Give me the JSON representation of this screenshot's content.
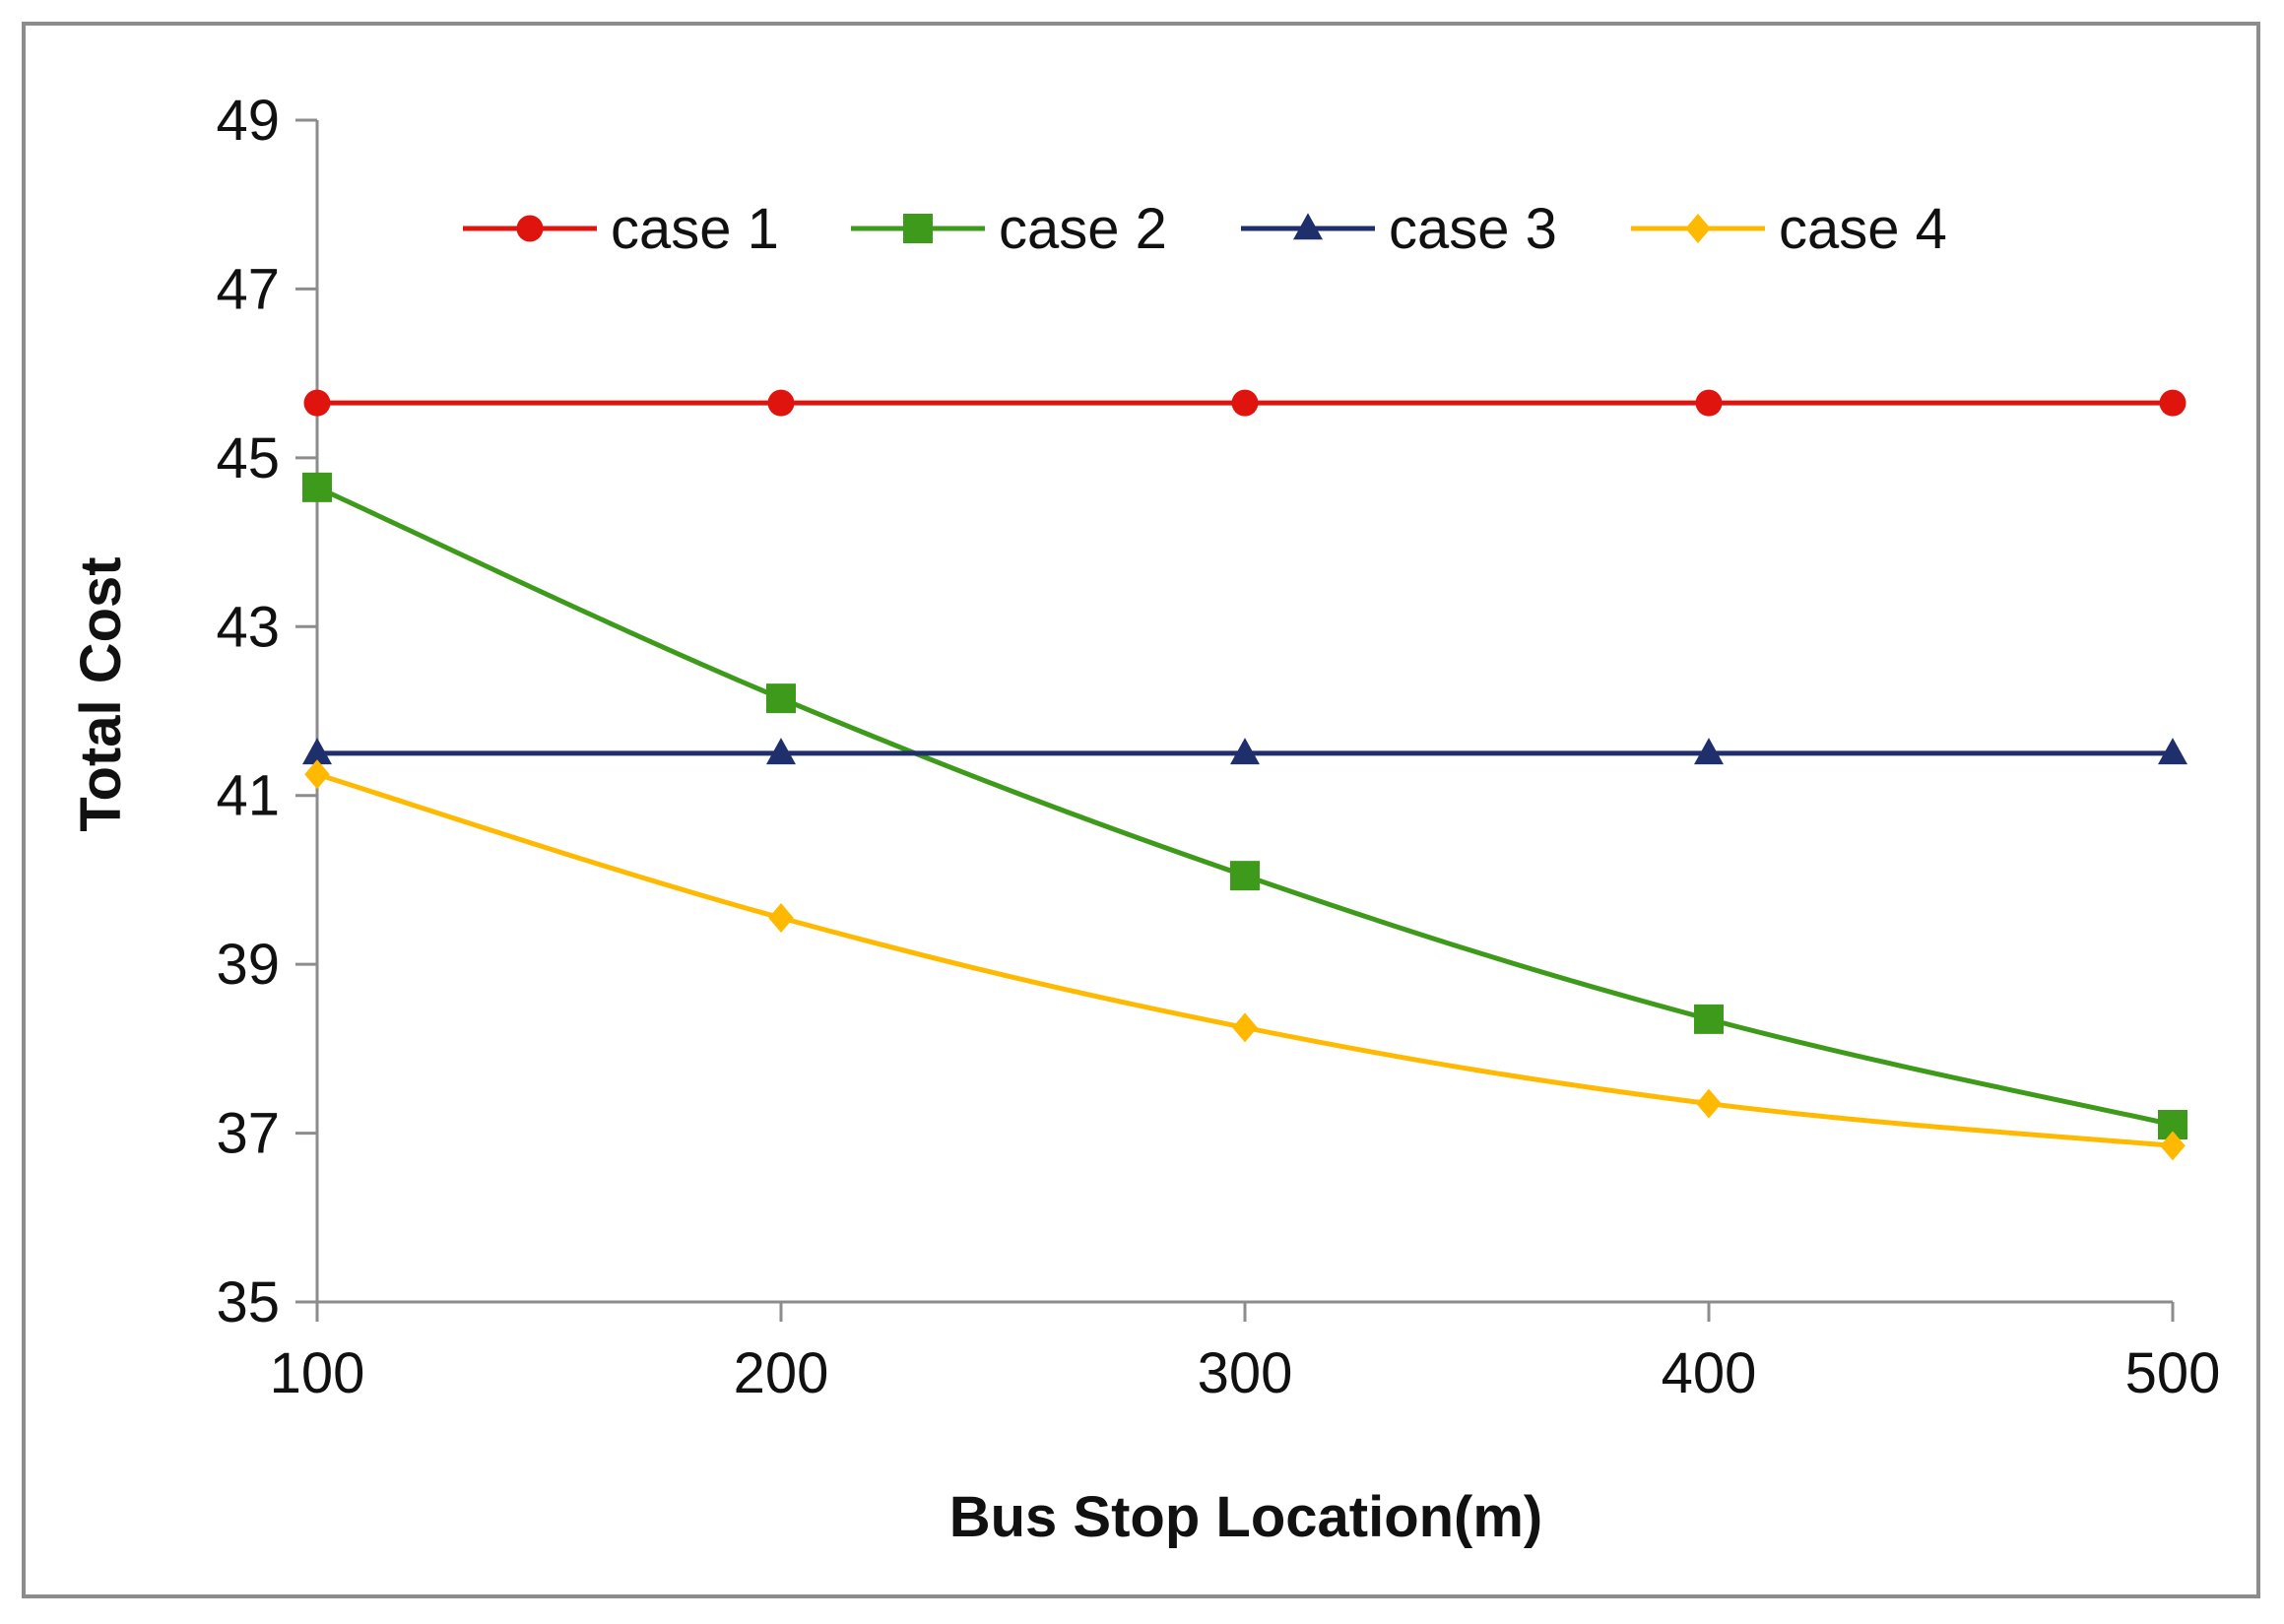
{
  "chart_data": {
    "type": "line",
    "title": "",
    "xlabel": "Bus Stop Location(m)",
    "ylabel": "Total Cost",
    "x": [
      100,
      200,
      300,
      400,
      500
    ],
    "xticks": [
      "100",
      "200",
      "300",
      "400",
      "500"
    ],
    "yticks": [
      "35",
      "37",
      "39",
      "41",
      "43",
      "45",
      "47",
      "49"
    ],
    "ylim": [
      35,
      49
    ],
    "grid": false,
    "legend_position": "top",
    "series": [
      {
        "name": "case 1",
        "color": "#e0140e",
        "marker": "circle",
        "values": [
          45.65,
          45.65,
          45.65,
          45.65,
          45.65
        ]
      },
      {
        "name": "case 2",
        "color": "#3d9a1a",
        "marker": "square",
        "values": [
          44.65,
          42.15,
          40.05,
          38.35,
          37.1
        ]
      },
      {
        "name": "case 3",
        "color": "#1f2f6b",
        "marker": "triangle",
        "values": [
          41.5,
          41.5,
          41.5,
          41.5,
          41.5
        ]
      },
      {
        "name": "case 4",
        "color": "#ffb900",
        "marker": "diamond",
        "values": [
          41.25,
          39.55,
          38.25,
          37.35,
          36.85
        ]
      }
    ]
  }
}
